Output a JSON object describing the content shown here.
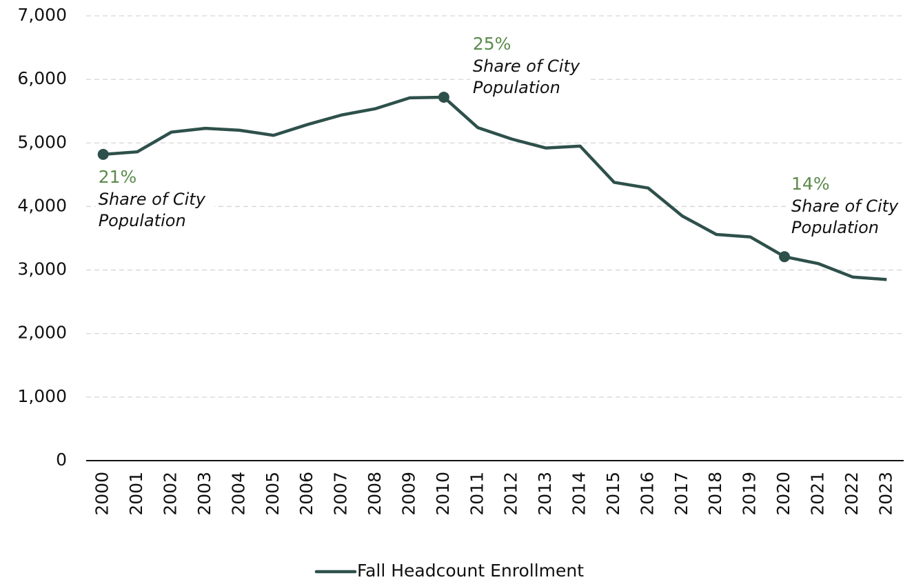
{
  "chart_data": {
    "type": "line",
    "categories": [
      "2000",
      "2001",
      "2002",
      "2003",
      "2004",
      "2005",
      "2006",
      "2007",
      "2008",
      "2009",
      "2010",
      "2011",
      "2012",
      "2013",
      "2014",
      "2015",
      "2016",
      "2017",
      "2018",
      "2019",
      "2020",
      "2021",
      "2022",
      "2023"
    ],
    "series": [
      {
        "name": "Fall Headcount Enrollment",
        "color": "#2e504b",
        "values": [
          4820,
          4860,
          5170,
          5230,
          5200,
          5120,
          5290,
          5440,
          5540,
          5710,
          5720,
          5240,
          5060,
          4920,
          4950,
          4380,
          4290,
          3850,
          3560,
          3520,
          3210,
          3100,
          2890,
          2850
        ]
      }
    ],
    "ylim": [
      0,
      7000
    ],
    "yticks": [
      0,
      {
        "value": 1000,
        "label": "1,000"
      },
      {
        "value": 2000,
        "label": "2,000"
      },
      {
        "value": 3000,
        "label": "3,000"
      },
      {
        "value": 4000,
        "label": "4,000"
      },
      {
        "value": 5000,
        "label": "5,000"
      },
      {
        "value": 6000,
        "label": "6,000"
      },
      {
        "value": 7000,
        "label": "7,000"
      }
    ],
    "grid": true,
    "legend": "bottom",
    "annotations": [
      {
        "index": 0,
        "label": "21%",
        "text": [
          "Share of City",
          "Population"
        ]
      },
      {
        "index": 10,
        "label": "25%",
        "text": [
          "Share of City",
          "Population"
        ]
      },
      {
        "index": 20,
        "label": "14%",
        "text": [
          "Share of City",
          "Population"
        ]
      }
    ],
    "annotation_color": "#5b8a4b"
  }
}
